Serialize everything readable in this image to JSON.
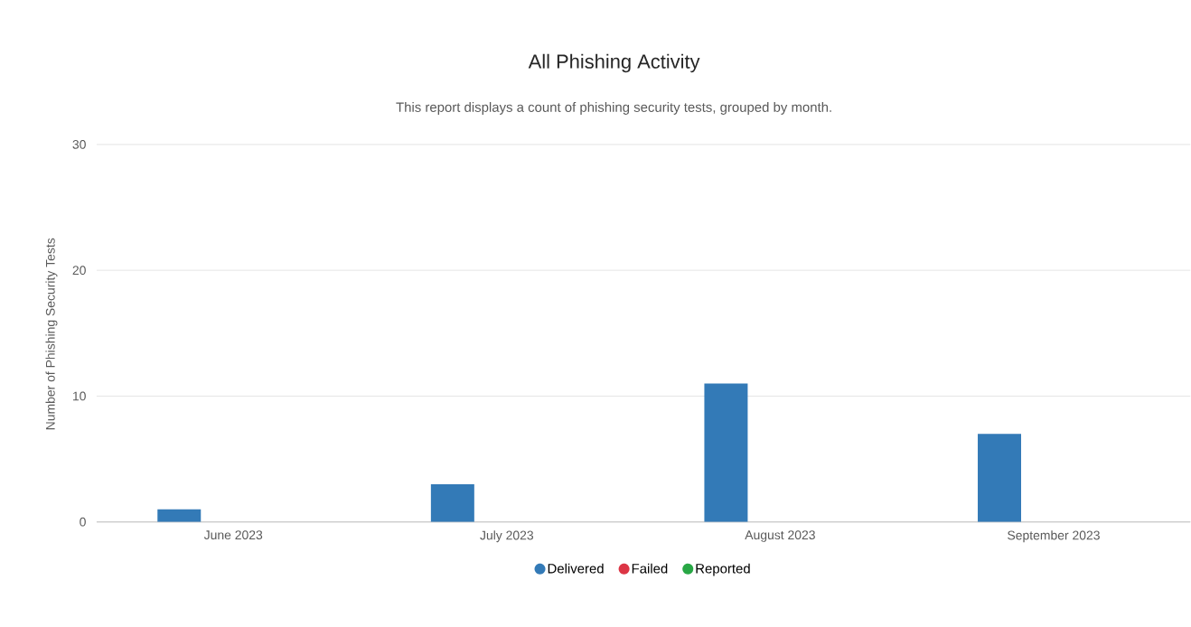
{
  "chart_data": {
    "type": "bar",
    "title": "All Phishing Activity",
    "subtitle": "This report displays a count of phishing security tests, grouped by month.",
    "ylabel": "Number of Phishing Security Tests",
    "categories": [
      "June 2023",
      "July 2023",
      "August 2023",
      "September 2023"
    ],
    "series": [
      {
        "name": "Delivered",
        "color": "#337ab7",
        "values": [
          1,
          3,
          11,
          7
        ]
      },
      {
        "name": "Failed",
        "color": "#dc3545",
        "values": [
          0,
          0,
          0,
          0
        ]
      },
      {
        "name": "Reported",
        "color": "#28a745",
        "values": [
          0,
          0,
          0,
          0
        ]
      }
    ],
    "ylim": [
      0,
      30
    ],
    "yticks": [
      0,
      10,
      20,
      30
    ],
    "grid": "y",
    "legend": "bottom"
  }
}
